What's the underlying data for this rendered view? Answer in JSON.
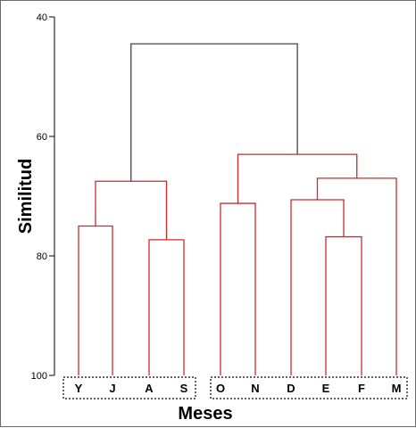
{
  "chart_data": {
    "type": "dendrogram",
    "ylabel": "Similitud",
    "xlabel": "Meses",
    "ylim": [
      40,
      100
    ],
    "yticks": [
      "40",
      "60",
      "80",
      "100"
    ],
    "leaves": [
      "Y",
      "J",
      "A",
      "S",
      "O",
      "N",
      "D",
      "E",
      "F",
      "M"
    ],
    "leaf_groups": [
      [
        "Y",
        "J",
        "A",
        "S"
      ],
      [
        "O",
        "N",
        "D",
        "E",
        "F",
        "M"
      ]
    ],
    "merges": [
      {
        "left": "Y",
        "right": "J",
        "similarity": 75.0,
        "color": "#cc2a2a"
      },
      {
        "left": "A",
        "right": "S",
        "similarity": 77.3,
        "color": "#cc2a2a"
      },
      {
        "left": "Y-J",
        "right": "A-S",
        "similarity": 67.5,
        "color": "#cc2a2a"
      },
      {
        "left": "O",
        "right": "N",
        "similarity": 71.2,
        "color": "#cc2a2a"
      },
      {
        "left": "E",
        "right": "F",
        "similarity": 76.8,
        "color": "#cc2a2a"
      },
      {
        "left": "D",
        "right": "E-F",
        "similarity": 70.6,
        "color": "#cc2a2a"
      },
      {
        "left": "D-E-F",
        "right": "M",
        "similarity": 67.0,
        "color": "#cc2a2a"
      },
      {
        "left": "O-N",
        "right": "D-E-F-M",
        "similarity": 63.0,
        "color": "#cc2a2a"
      },
      {
        "left": "Y-J-A-S",
        "right": "O-N-D-E-F-M",
        "similarity": 44.5,
        "color": "#444444"
      }
    ]
  }
}
